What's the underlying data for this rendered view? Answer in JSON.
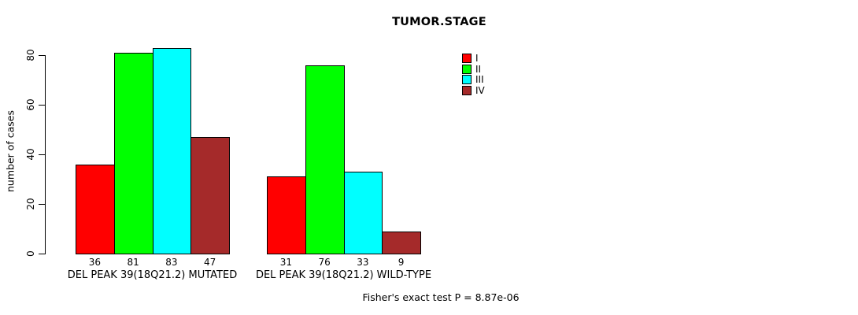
{
  "title": "TUMOR.STAGE",
  "footer": "Fisher's exact test P = 8.87e-06",
  "chart_data": {
    "type": "bar",
    "title": "TUMOR.STAGE",
    "ylabel": "number of cases",
    "xlabel": "",
    "ylim": [
      0,
      80
    ],
    "yticks": [
      0,
      20,
      40,
      60,
      80
    ],
    "grid": false,
    "legend": {
      "position": "top-right",
      "entries": [
        "I",
        "II",
        "III",
        "IV"
      ]
    },
    "colors": [
      "#FF0000",
      "#00FF00",
      "#00FFFF",
      "#A52A2A"
    ],
    "categories": [
      "DEL PEAK 39(18Q21.2) MUTATED",
      "DEL PEAK 39(18Q21.2) WILD-TYPE"
    ],
    "series": [
      {
        "name": "I",
        "values": [
          36,
          31
        ]
      },
      {
        "name": "II",
        "values": [
          81,
          76
        ]
      },
      {
        "name": "III",
        "values": [
          83,
          33
        ]
      },
      {
        "name": "IV",
        "values": [
          47,
          9
        ]
      }
    ],
    "groups": [
      {
        "label": "DEL PEAK 39(18Q21.2) MUTATED",
        "values": [
          36,
          81,
          83,
          47
        ]
      },
      {
        "label": "DEL PEAK 39(18Q21.2) WILD-TYPE",
        "values": [
          31,
          76,
          33,
          9
        ]
      }
    ],
    "annotation": "Fisher's exact test P = 8.87e-06"
  }
}
